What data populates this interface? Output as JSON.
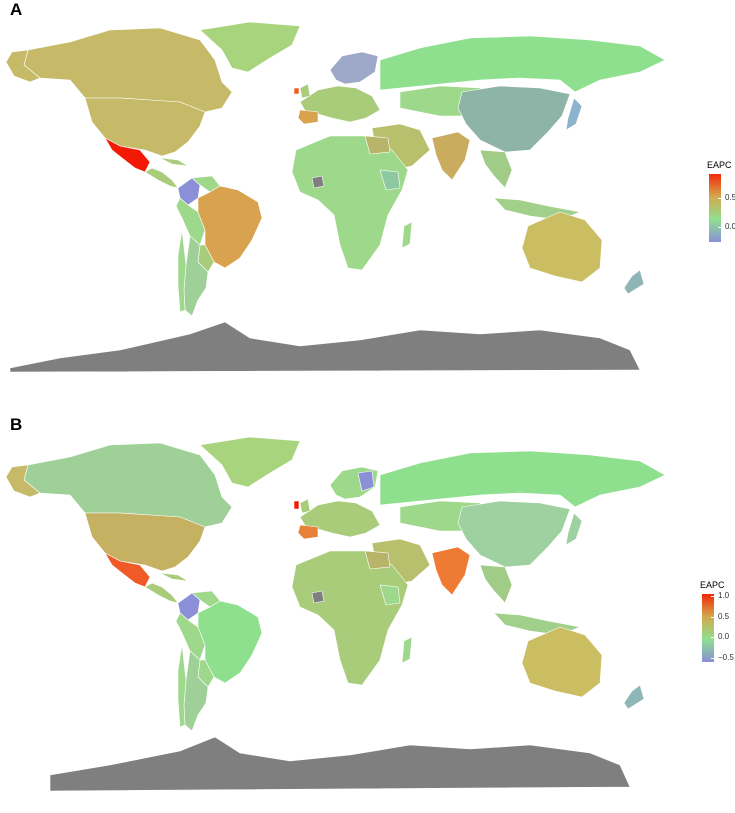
{
  "panels": [
    {
      "label": "A",
      "legend": {
        "title": "EAPC",
        "ticks": [
          "0.5",
          "0.0"
        ],
        "tick_values": [
          0.5,
          0.0
        ],
        "range": [
          -0.25,
          0.9
        ],
        "colors": [
          "#8a8fd8",
          "#8ee08e",
          "#d4a84e",
          "#f02a0a"
        ]
      }
    },
    {
      "label": "B",
      "legend": {
        "title": "EAPC",
        "ticks": [
          "1.0",
          "0.5",
          "0.0",
          "−0.5"
        ],
        "tick_values": [
          1.0,
          0.5,
          0.0,
          -0.5
        ],
        "range": [
          -0.6,
          1.05
        ],
        "colors": [
          "#8a8fd8",
          "#8ee08e",
          "#d4a84e",
          "#f02a0a"
        ]
      }
    }
  ],
  "colors": {
    "no_data": "#7f7f7f",
    "background": "#ffffff",
    "border": "#ffffff"
  }
}
